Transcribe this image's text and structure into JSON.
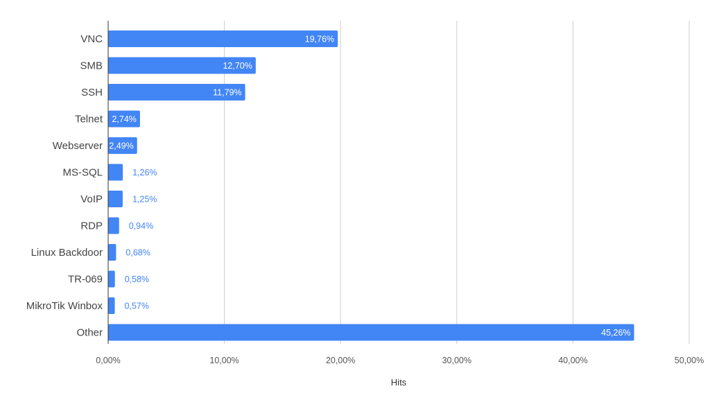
{
  "chart_data": {
    "type": "bar",
    "orientation": "horizontal",
    "categories": [
      "VNC",
      "SMB",
      "SSH",
      "Telnet",
      "Webserver",
      "MS-SQL",
      "VoIP",
      "RDP",
      "Linux Backdoor",
      "TR-069",
      "MikroTik Winbox",
      "Other"
    ],
    "values": [
      19.76,
      12.7,
      11.79,
      2.74,
      2.49,
      1.26,
      1.25,
      0.94,
      0.68,
      0.58,
      0.57,
      45.26
    ],
    "data_labels": [
      "19,76%",
      "12,70%",
      "11,79%",
      "2,74%",
      "2,49%",
      "1,26%",
      "1,25%",
      "0,94%",
      "0,68%",
      "0,58%",
      "0,57%",
      "45,26%"
    ],
    "xlabel": "Hits",
    "ylabel": "",
    "xlim": [
      0,
      50
    ],
    "x_ticks": [
      0,
      10,
      20,
      30,
      40,
      50
    ],
    "x_tick_labels": [
      "0,00%",
      "10,00%",
      "20,00%",
      "30,00%",
      "40,00%",
      "50,00%"
    ],
    "grid": true,
    "legend": "none",
    "colors": {
      "bar": "#4285f4",
      "label_inside": "#ffffff",
      "label_outside": "#4285f4"
    }
  }
}
